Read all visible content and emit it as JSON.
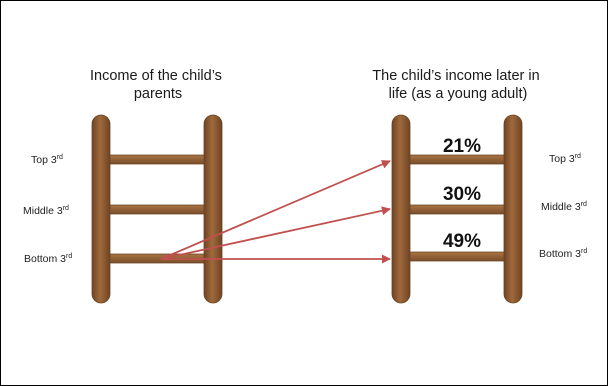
{
  "left_title": [
    "Income of the child’s",
    "parents"
  ],
  "right_title": [
    "The child’s income later in",
    "life (as a young adult)"
  ],
  "left_rungs": [
    {
      "base": "Top 3",
      "sup": "rd"
    },
    {
      "base": "Middle 3",
      "sup": "rd"
    },
    {
      "base": "Bottom 3",
      "sup": "rd"
    }
  ],
  "right_rungs": [
    {
      "base": "Top 3",
      "sup": "rd",
      "pct": "21%"
    },
    {
      "base": "Middle 3",
      "sup": "rd",
      "pct": "30%"
    },
    {
      "base": "Bottom 3",
      "sup": "rd",
      "pct": "49%"
    }
  ],
  "colors": {
    "ladder": "#8a5a33",
    "ladder_edge": "#6b4322",
    "arrow": "#c0504d",
    "border": "#000000"
  }
}
